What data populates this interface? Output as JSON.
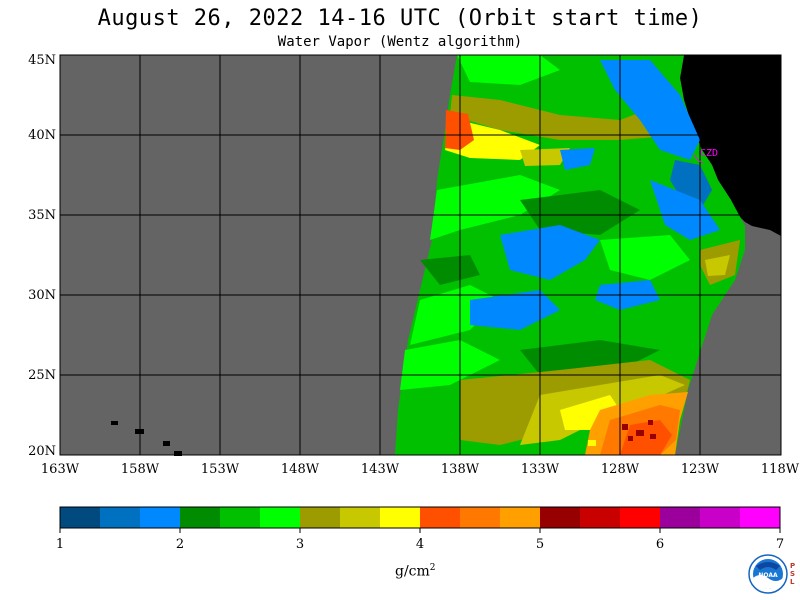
{
  "header": {
    "title": "August 26, 2022  14-16 UTC  (Orbit start time)",
    "subtitle": "Water Vapor (Wentz algorithm)"
  },
  "map": {
    "lat_ticks": [
      "45N",
      "40N",
      "35N",
      "30N",
      "25N",
      "20N"
    ],
    "lon_ticks": [
      "163W",
      "158W",
      "153W",
      "148W",
      "143W",
      "138W",
      "133W",
      "128W",
      "123W",
      "118W"
    ],
    "station_label": "CZD",
    "colors": {
      "ocean_no_data": "#646464",
      "land": "#000000",
      "grid": "#000000",
      "station": "#ff00ff"
    }
  },
  "colorbar": {
    "labels": [
      "1",
      "2",
      "3",
      "4",
      "5",
      "6",
      "7"
    ],
    "units_base": "g/cm",
    "units_exp": "2",
    "colors": [
      "#004a80",
      "#0070c0",
      "#0088ff",
      "#008c00",
      "#00c000",
      "#00ff00",
      "#9c9c00",
      "#c8c800",
      "#ffff00",
      "#ff5000",
      "#ff7800",
      "#ffa000",
      "#960000",
      "#c80000",
      "#ff0000",
      "#9c009c",
      "#c800c8",
      "#ff00ff"
    ]
  },
  "logo": {
    "text": "NOAA",
    "side_text": "PSL"
  }
}
